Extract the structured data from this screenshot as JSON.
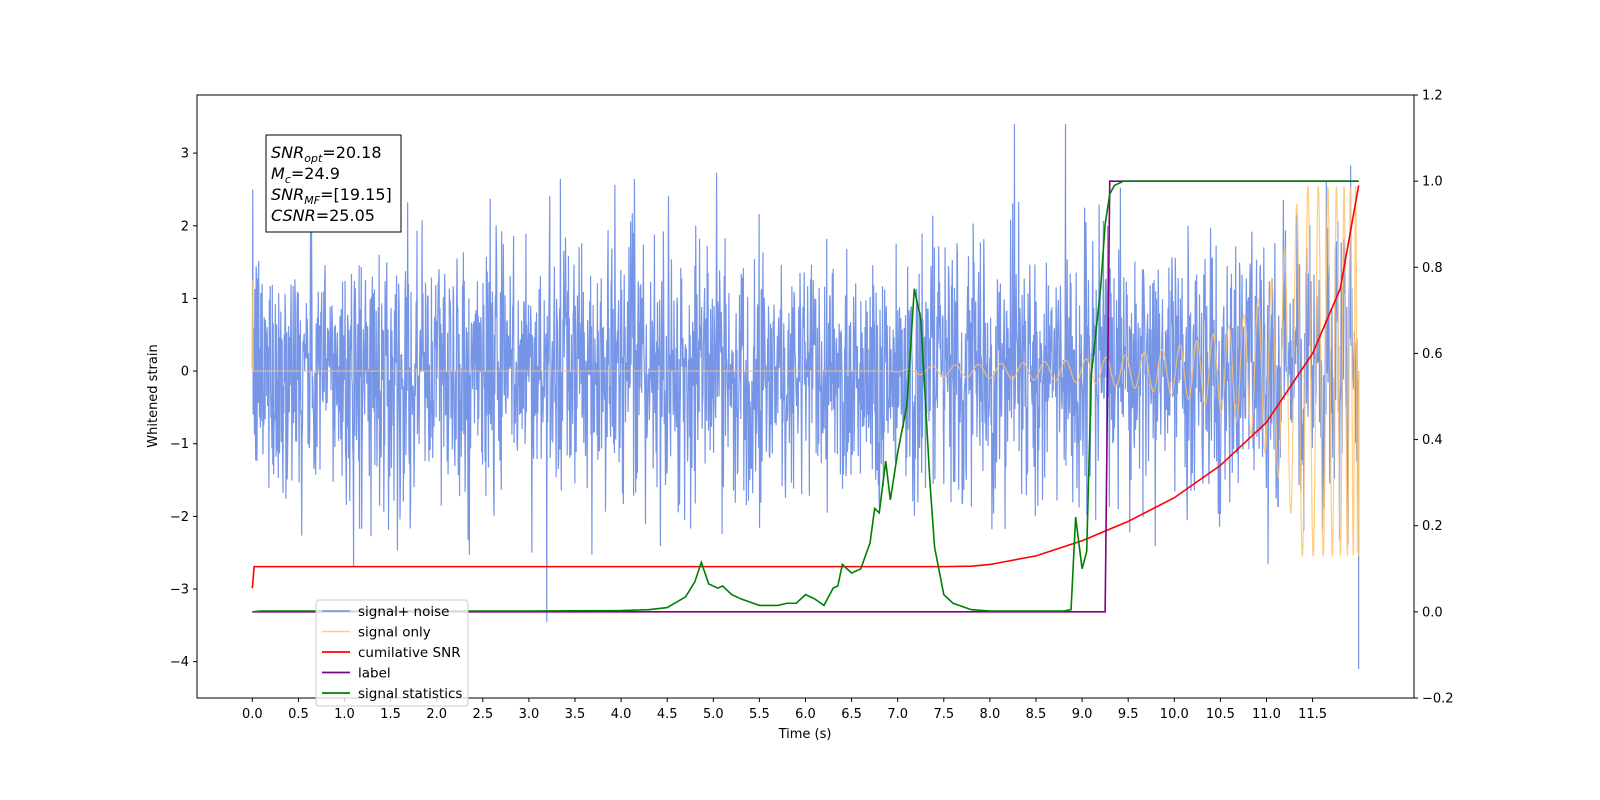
{
  "chart_data": {
    "type": "line",
    "xlabel": "Time (s)",
    "ylabel": "Whitened strain",
    "xlim": [
      -0.6,
      12.6
    ],
    "ylim": [
      -4.5,
      3.8
    ],
    "ylim_right": [
      -0.2,
      1.2
    ],
    "x_ticks": [
      "0.0",
      "0.5",
      "1.0",
      "1.5",
      "2.0",
      "2.5",
      "3.0",
      "3.5",
      "4.0",
      "4.5",
      "5.0",
      "5.5",
      "6.0",
      "6.5",
      "7.0",
      "7.5",
      "8.0",
      "8.5",
      "9.0",
      "9.5",
      "10.0",
      "10.5",
      "11.0",
      "11.5"
    ],
    "y_ticks_left": [
      "3",
      "2",
      "1",
      "0",
      "−1",
      "−2",
      "−3",
      "−4"
    ],
    "y_ticks_right": [
      "1.2",
      "1.0",
      "0.8",
      "0.6",
      "0.4",
      "0.2",
      "0.0",
      "−0.2"
    ],
    "grid": false,
    "legend_position": "lower-left",
    "annotations": [
      {
        "name": "SNR",
        "sub": "opt",
        "value": "=20.18"
      },
      {
        "name": "M",
        "sub": "c",
        "value": "=24.9"
      },
      {
        "name": "SNR",
        "sub": "MF",
        "value": "=[19.15]"
      },
      {
        "name": "CSNR",
        "sub": "",
        "value": "=25.05"
      }
    ],
    "series": [
      {
        "name": "signal+ noise",
        "color": "#6f8fe6",
        "axis": "left",
        "description": "whitened noise, std approx 0.9, spikes to about 3.4 and -4.1"
      },
      {
        "name": "signal only",
        "color": "#ffc36b",
        "axis": "left",
        "description": "chirp, amplitude rising from ~0.05 at 7.5 s to ~2.6 at 12.0 s"
      },
      {
        "name": "cumilative SNR",
        "color": "#ff0000",
        "axis": "right",
        "x": [
          0,
          0.02,
          7.5,
          7.8,
          8.0,
          8.5,
          9.0,
          9.5,
          10.0,
          10.5,
          11.0,
          11.5,
          11.8,
          12.0
        ],
        "y": [
          0.055,
          0.105,
          0.105,
          0.106,
          0.11,
          0.13,
          0.165,
          0.21,
          0.265,
          0.34,
          0.44,
          0.6,
          0.75,
          0.99
        ]
      },
      {
        "name": "label",
        "color": "#800080",
        "axis": "right",
        "x": [
          0,
          9.25,
          9.3,
          12.0
        ],
        "y": [
          0.0,
          0.0,
          1.0,
          1.0
        ]
      },
      {
        "name": "signal statistics",
        "color": "#008000",
        "axis": "right",
        "x": [
          0,
          0.1,
          3.0,
          4.0,
          4.3,
          4.5,
          4.7,
          4.8,
          4.87,
          4.95,
          5.05,
          5.1,
          5.2,
          5.3,
          5.5,
          5.7,
          5.8,
          5.9,
          6.0,
          6.1,
          6.2,
          6.3,
          6.35,
          6.4,
          6.5,
          6.6,
          6.7,
          6.75,
          6.8,
          6.87,
          6.92,
          7.0,
          7.1,
          7.18,
          7.25,
          7.35,
          7.4,
          7.5,
          7.6,
          7.8,
          8.0,
          8.8,
          8.88,
          8.93,
          9.0,
          9.05,
          9.1,
          9.2,
          9.25,
          9.3,
          9.35,
          9.45,
          9.5,
          12.0
        ],
        "y": [
          0.0,
          0.002,
          0.002,
          0.003,
          0.005,
          0.01,
          0.035,
          0.07,
          0.115,
          0.065,
          0.055,
          0.06,
          0.04,
          0.03,
          0.015,
          0.015,
          0.02,
          0.02,
          0.04,
          0.03,
          0.015,
          0.055,
          0.06,
          0.11,
          0.09,
          0.1,
          0.16,
          0.24,
          0.23,
          0.35,
          0.26,
          0.37,
          0.48,
          0.75,
          0.68,
          0.3,
          0.15,
          0.04,
          0.02,
          0.005,
          0.002,
          0.002,
          0.005,
          0.22,
          0.1,
          0.14,
          0.55,
          0.75,
          0.9,
          0.97,
          0.99,
          1.0,
          1.0,
          1.0
        ]
      }
    ]
  }
}
